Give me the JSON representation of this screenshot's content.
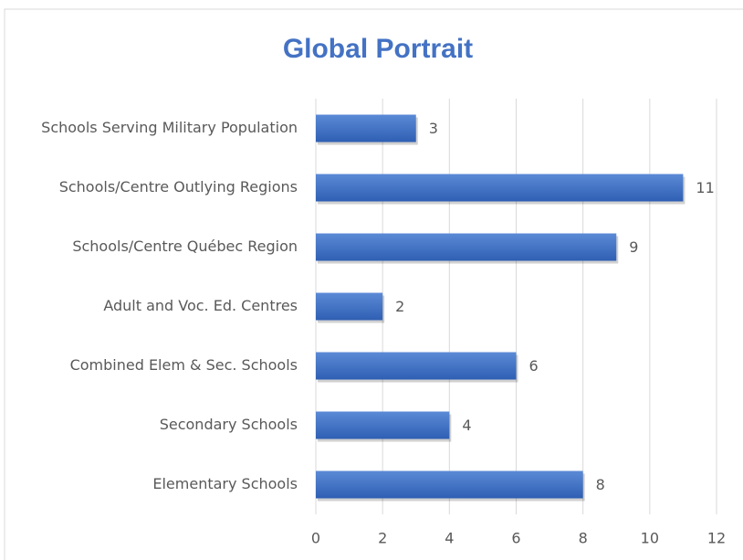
{
  "chart_data": {
    "type": "hbar",
    "title": "Global Portrait",
    "categories": [
      "Schools Serving Military Population",
      "Schools/Centre Outlying Regions",
      "Schools/Centre Québec Region",
      "Adult and Voc. Ed. Centres",
      "Combined Elem & Sec. Schools",
      "Secondary Schools",
      "Elementary Schools"
    ],
    "values": [
      3,
      11,
      9,
      2,
      6,
      4,
      8
    ],
    "color": "#4472c4",
    "xlim": [
      0,
      12
    ],
    "xticks": [
      0,
      2,
      4,
      6,
      8,
      10,
      12
    ],
    "grid": true
  }
}
